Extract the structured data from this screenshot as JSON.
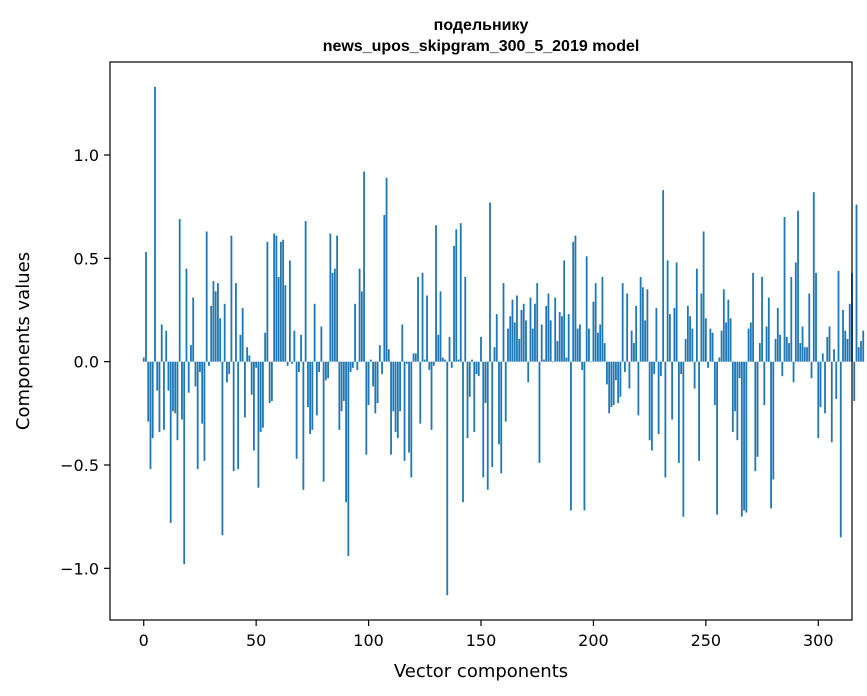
{
  "chart_data": {
    "type": "bar",
    "title_line1": "подельнику",
    "title_line2": "news_upos_skipgram_300_5_2019 model",
    "xlabel": "Vector components",
    "ylabel": "Components values",
    "xlim": [
      -15,
      315
    ],
    "ylim": [
      -1.25,
      1.45
    ],
    "xticks": [
      0,
      50,
      100,
      150,
      200,
      250,
      300
    ],
    "xtick_labels": [
      "0",
      "50",
      "100",
      "150",
      "200",
      "250",
      "300"
    ],
    "yticks": [
      -1.0,
      -0.5,
      0.0,
      0.5,
      1.0
    ],
    "ytick_labels": [
      "−1.0",
      "−0.5",
      "0.0",
      "0.5",
      "1.0"
    ],
    "bar_color": "#1f77b4",
    "grid": false,
    "values": [
      0.02,
      0.53,
      -0.29,
      -0.52,
      -0.37,
      1.33,
      -0.14,
      -0.34,
      0.18,
      -0.33,
      0.15,
      -0.14,
      -0.78,
      -0.24,
      -0.25,
      -0.38,
      0.69,
      -0.28,
      -0.98,
      0.45,
      -0.15,
      0.08,
      0.31,
      -0.12,
      -0.52,
      -0.05,
      -0.3,
      -0.48,
      0.63,
      -0.02,
      0.27,
      0.39,
      0.34,
      0.38,
      0.21,
      -0.84,
      0.28,
      -0.1,
      -0.06,
      0.61,
      -0.53,
      0.38,
      -0.52,
      0.13,
      0.26,
      -0.27,
      0.07,
      0.03,
      -0.16,
      -0.43,
      -0.03,
      -0.61,
      -0.34,
      -0.32,
      0.14,
      0.58,
      -0.2,
      -0.19,
      0.62,
      0.61,
      0.41,
      0.58,
      0.59,
      0.37,
      -0.02,
      0.49,
      -0.01,
      0.15,
      -0.47,
      -0.05,
      0.13,
      -0.62,
      0.68,
      -0.22,
      -0.35,
      -0.33,
      0.28,
      -0.26,
      -0.05,
      0.17,
      -0.58,
      -0.09,
      -0.08,
      0.62,
      0.43,
      0.45,
      0.61,
      -0.33,
      -0.24,
      -0.19,
      -0.68,
      -0.94,
      -0.05,
      -0.03,
      0.28,
      -0.04,
      0.45,
      0.34,
      0.92,
      -0.45,
      -0.21,
      0.01,
      -0.12,
      -0.25,
      -0.2,
      0.08,
      -0.06,
      0.71,
      0.89,
      0.06,
      -0.45,
      -0.24,
      -0.34,
      -0.37,
      -0.24,
      0.18,
      -0.48,
      -0.01,
      -0.44,
      -0.56,
      0.04,
      0.04,
      0.41,
      -0.3,
      0.43,
      0.01,
      0.32,
      -0.04,
      -0.33,
      -0.02,
      0.66,
      0.13,
      0.34,
      0.02,
      0.01,
      -1.13,
      0.12,
      -0.03,
      0.56,
      0.64,
      0.01,
      0.67,
      -0.68,
      0.41,
      -0.37,
      -0.17,
      0.01,
      -0.34,
      -0.06,
      -0.07,
      0.12,
      -0.56,
      -0.2,
      -0.62,
      0.77,
      -0.51,
      0.07,
      0.23,
      -0.4,
      -0.54,
      0.38,
      -0.29,
      0.16,
      0.22,
      0.3,
      0.19,
      0.32,
      0.11,
      0.25,
      0.28,
      0.2,
      -0.1,
      0.31,
      0.16,
      0.28,
      0.38,
      -0.49,
      0.18,
      0.01,
      0.27,
      0.33,
      0.2,
      0.0,
      0.31,
      0.1,
      0.24,
      0.22,
      0.49,
      0.02,
      0.23,
      -0.72,
      0.58,
      0.61,
      0.16,
      0.18,
      -0.04,
      -0.72,
      0.51,
      0.16,
      0.0,
      0.29,
      0.38,
      0.14,
      0.18,
      0.41,
      0.09,
      -0.11,
      -0.25,
      -0.22,
      -0.21,
      -0.09,
      -0.2,
      -0.17,
      0.38,
      -0.05,
      0.33,
      -0.13,
      0.15,
      0.09,
      0.27,
      -0.26,
      0.41,
      0.36,
      0.2,
      0.35,
      -0.38,
      -0.43,
      -0.06,
      0.26,
      -0.35,
      -0.07,
      0.83,
      -0.56,
      0.49,
      0.23,
      -0.28,
      0.26,
      0.48,
      -0.49,
      -0.06,
      -0.75,
      0.11,
      0.27,
      0.22,
      0.16,
      -0.13,
      0.45,
      -0.48,
      0.33,
      0.63,
      0.21,
      -0.03,
      0.16,
      0.14,
      -0.21,
      -0.74,
      0.02,
      0.15,
      0.35,
      0.19,
      0.3,
      0.21,
      -0.34,
      -0.24,
      -0.38,
      -0.08,
      -0.75,
      -0.72,
      -0.73,
      0.16,
      0.19,
      0.43,
      -0.53,
      -0.46,
      0.09,
      0.41,
      -0.21,
      0.17,
      0.31,
      -0.71,
      -0.57,
      0.11,
      0.26,
      0.13,
      -0.07,
      0.7,
      0.12,
      0.09,
      0.41,
      -0.1,
      0.48,
      0.73,
      0.09,
      0.17,
      0.07,
      0.07,
      0.33,
      -0.08,
      0.82,
      0.43,
      -0.37,
      -0.22,
      0.04,
      -0.25,
      0.12,
      0.17,
      -0.39,
      0.06,
      -0.18,
      0.44,
      -0.85,
      0.25,
      0.15,
      0.11,
      0.28,
      0.43,
      -0.19,
      0.76,
      0.07,
      0.1,
      0.15
    ]
  }
}
